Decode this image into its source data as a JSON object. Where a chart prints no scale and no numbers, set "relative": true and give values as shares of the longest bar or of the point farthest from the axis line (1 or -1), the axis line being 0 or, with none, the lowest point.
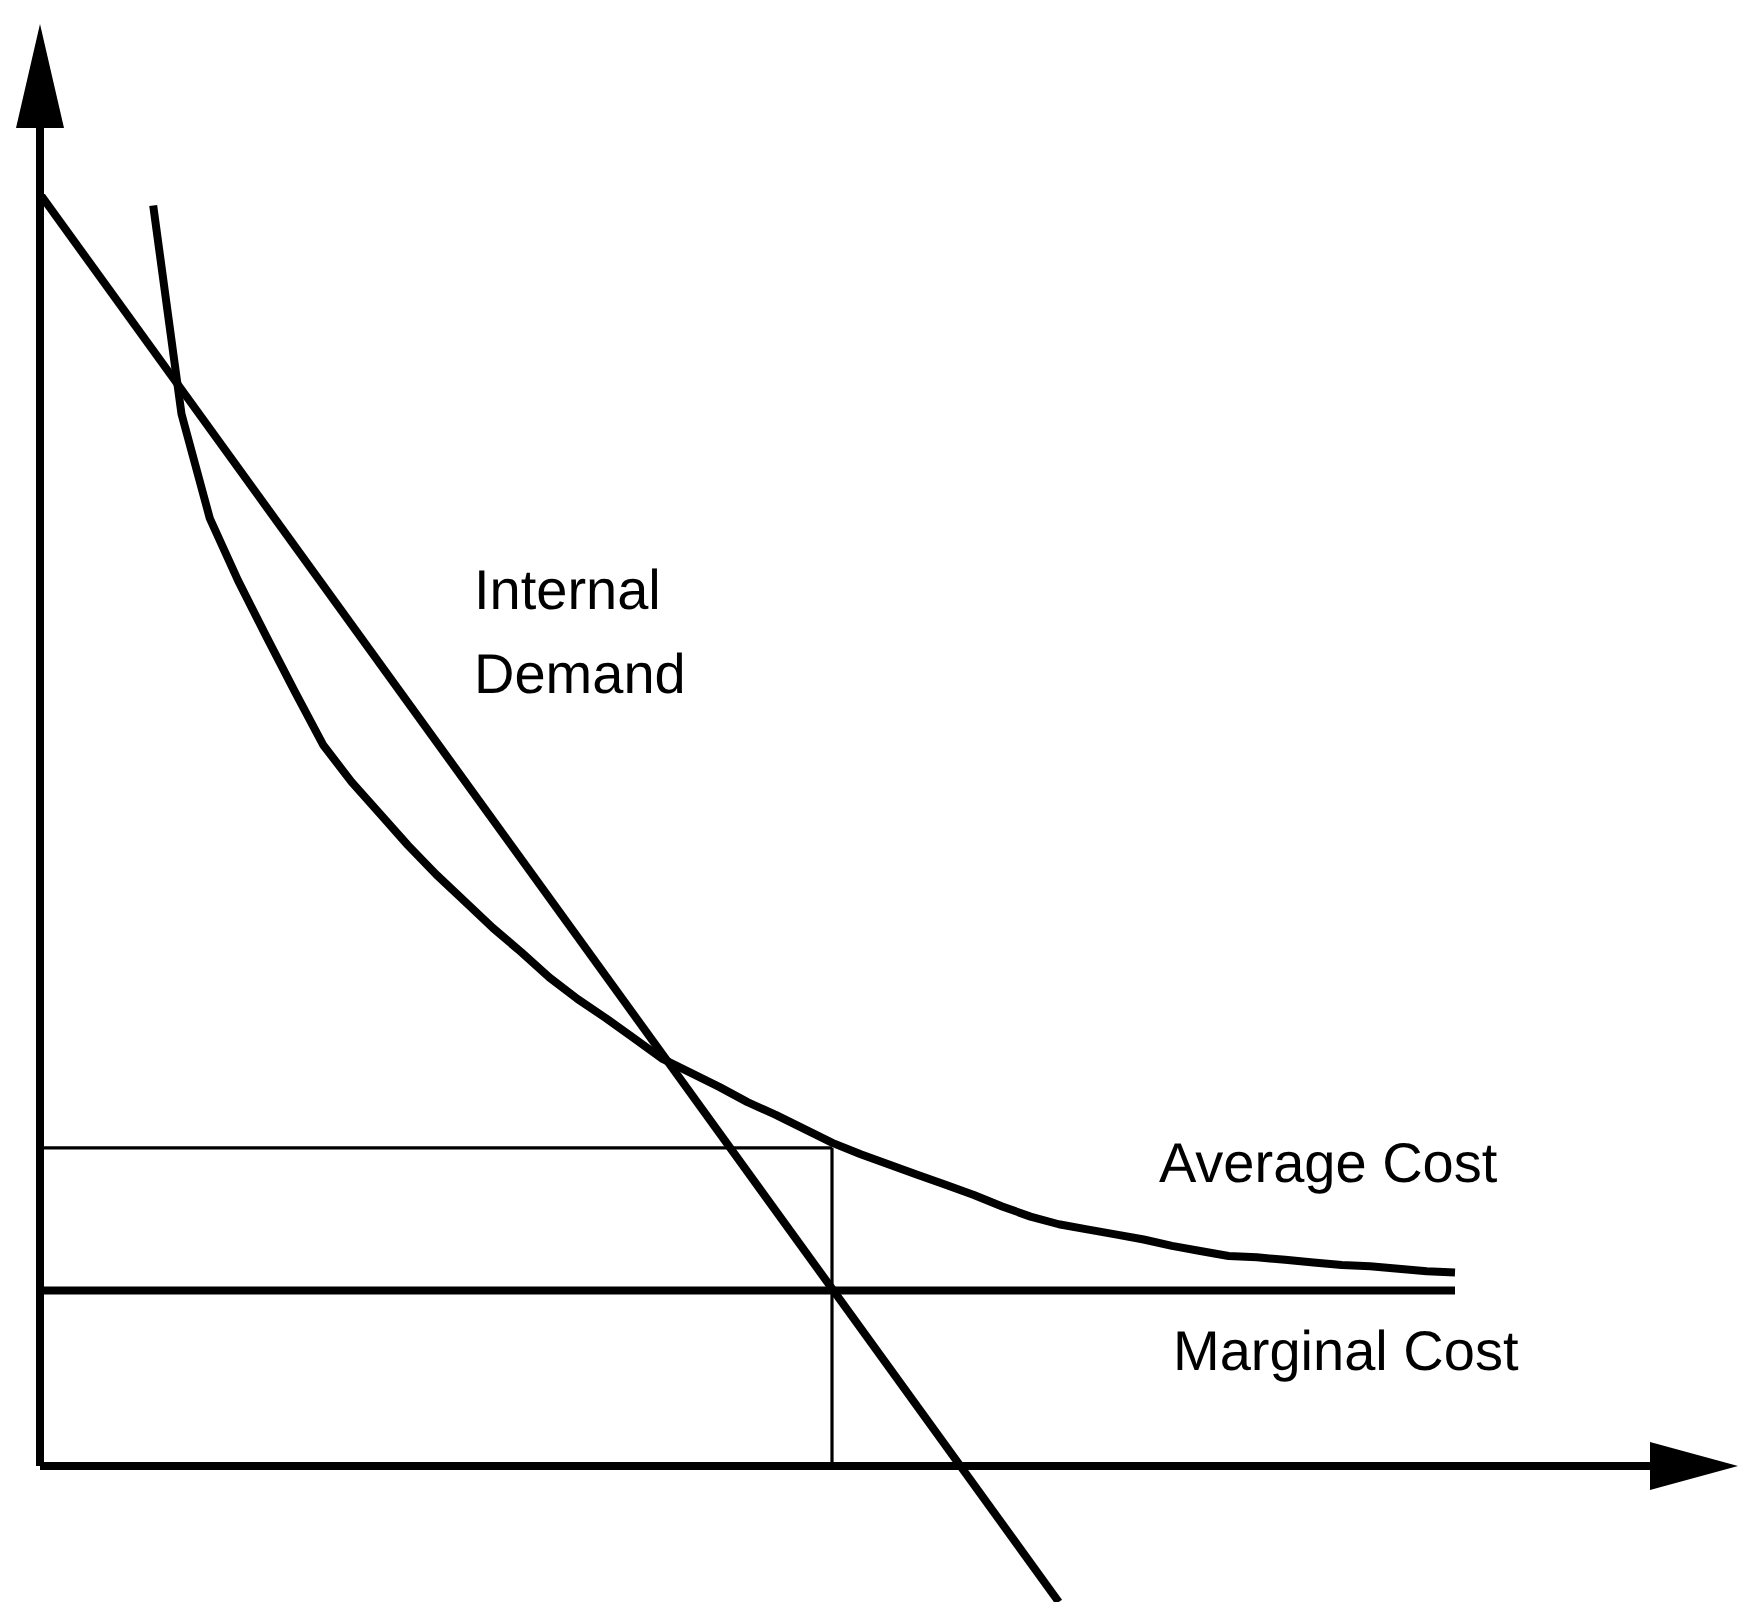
{
  "chart_data": {
    "type": "line",
    "relative": true,
    "legend": false,
    "marker": "none",
    "categories": [
      null,
      null,
      null,
      null,
      null,
      null,
      null,
      null,
      null,
      null,
      null,
      null,
      null,
      null,
      null,
      null,
      null,
      null,
      null,
      null,
      null,
      null,
      null,
      null,
      null,
      null,
      null,
      null,
      null,
      null,
      null,
      null,
      null,
      null,
      null,
      null,
      null,
      null,
      null,
      null,
      null,
      null,
      null,
      null,
      null,
      null,
      null,
      null,
      null,
      null,
      null,
      null,
      null,
      null,
      null,
      null,
      null,
      null,
      null,
      null,
      null
    ],
    "series": [
      {
        "name": "Internal Demand",
        "color": "#000000",
        "values": [
          1,
          null,
          null,
          null,
          null,
          null,
          null,
          null,
          null,
          null,
          null,
          null,
          null,
          null,
          null,
          null,
          null,
          null,
          null,
          null,
          null,
          null,
          null,
          null,
          null,
          null,
          null,
          null,
          null,
          null,
          null,
          null,
          null,
          null,
          null,
          null,
          -0.107,
          null,
          null,
          null,
          null,
          null,
          null,
          null,
          null,
          null,
          null,
          null,
          null,
          null,
          null,
          null,
          null,
          null,
          null,
          null,
          null,
          null,
          null,
          null,
          null
        ]
      },
      {
        "name": "Average Cost",
        "color": "#000000",
        "values": [
          null,
          null,
          null,
          null,
          0.991,
          0.827,
          0.745,
          0.696,
          0.652,
          0.609,
          0.567,
          0.538,
          0.513,
          0.488,
          0.465,
          0.444,
          0.423,
          0.404,
          0.384,
          0.367,
          0.352,
          0.336,
          0.32,
          0.309,
          0.298,
          0.286,
          0.276,
          0.265,
          0.254,
          0.245,
          0.237,
          0.229,
          0.221,
          0.213,
          0.204,
          0.196,
          0.19,
          0.186,
          0.182,
          0.178,
          0.173,
          0.169,
          0.165,
          0.164,
          0.162,
          0.16,
          0.158,
          0.157,
          0.155,
          0.153,
          0.152,
          null,
          null,
          null,
          null,
          null,
          null,
          null,
          null,
          null,
          null
        ]
      },
      {
        "name": "Marginal Cost",
        "color": "#000000",
        "values": [
          0.138,
          null,
          null,
          null,
          null,
          null,
          null,
          null,
          null,
          null,
          null,
          null,
          null,
          null,
          null,
          null,
          null,
          null,
          null,
          null,
          null,
          null,
          null,
          null,
          null,
          null,
          null,
          null,
          null,
          null,
          null,
          null,
          null,
          null,
          null,
          null,
          null,
          null,
          null,
          null,
          null,
          null,
          null,
          null,
          null,
          null,
          null,
          null,
          null,
          null,
          0.138,
          null,
          null,
          null,
          null,
          null,
          null,
          null,
          null,
          null,
          null
        ]
      },
      {
        "color": "#000000",
        "values": [
          0.25,
          null,
          null,
          null,
          null,
          null,
          null,
          null,
          null,
          null,
          null,
          null,
          null,
          null,
          null,
          null,
          null,
          null,
          null,
          null,
          null,
          null,
          null,
          null,
          null,
          null,
          null,
          null,
          0.25,
          null,
          null,
          null,
          null,
          null,
          null,
          null,
          null,
          null,
          null,
          null,
          null,
          null,
          null,
          null,
          null,
          null,
          null,
          null,
          null,
          null,
          null,
          null,
          null,
          null,
          null,
          null,
          null,
          null,
          null,
          null,
          null
        ]
      }
    ]
  }
}
